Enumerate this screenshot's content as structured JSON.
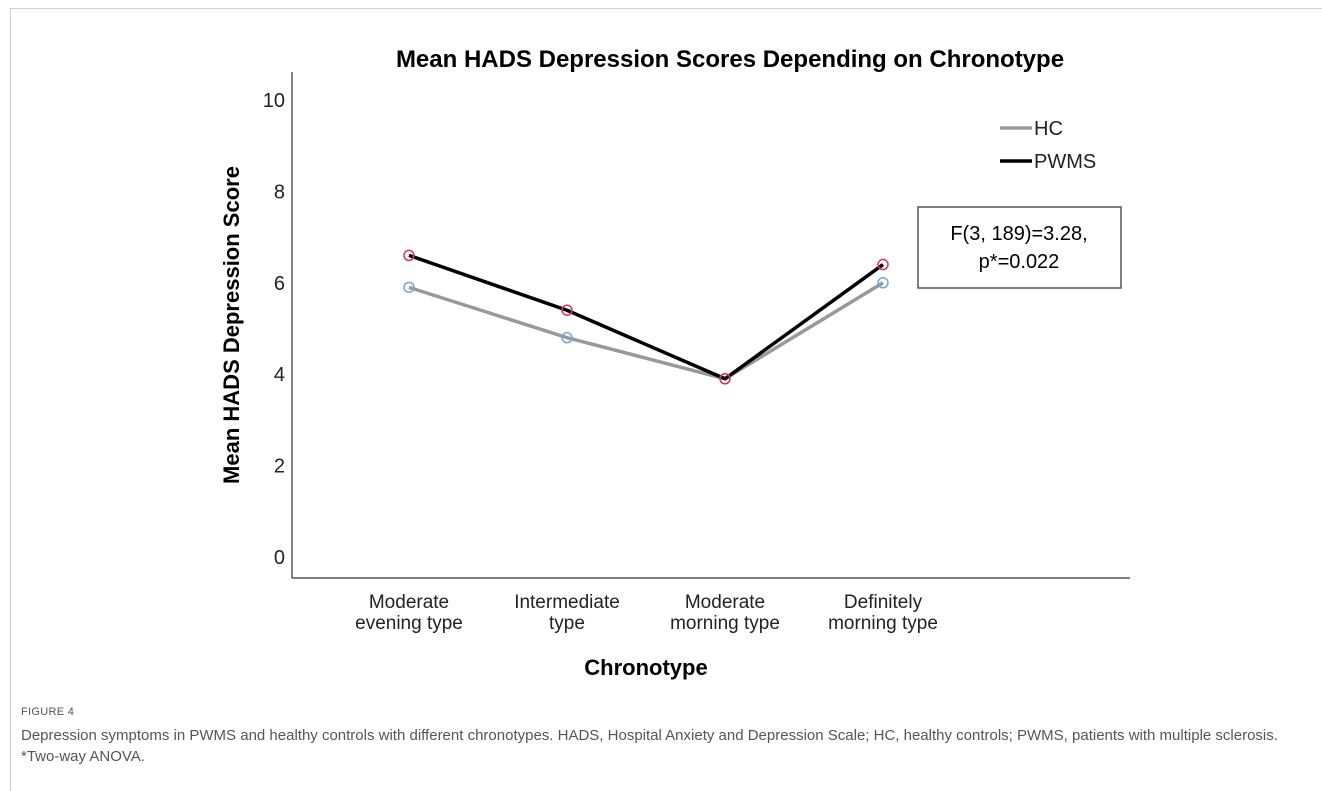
{
  "figure": {
    "label": "FIGURE 4",
    "caption": "Depression symptoms in PWMS and healthy controls with different chronotypes. HADS, Hospital Anxiety and Depression Scale; HC, healthy controls; PWMS, patients with multiple sclerosis. *Two-way ANOVA."
  },
  "chart_data": {
    "type": "line",
    "title": "Mean HADS Depression Scores Depending on Chronotype",
    "xlabel": "Chronotype",
    "ylabel": "Mean HADS Depression Score",
    "categories": [
      [
        "Moderate",
        "evening type"
      ],
      [
        "Intermediate",
        "type"
      ],
      [
        "Moderate",
        "morning type"
      ],
      [
        "Definitely",
        "morning type"
      ]
    ],
    "ylim": [
      0,
      10
    ],
    "yticks": [
      0,
      2,
      4,
      6,
      8,
      10
    ],
    "series": [
      {
        "name": "HC",
        "values": [
          5.9,
          4.8,
          3.9,
          6.0
        ],
        "line_color": "#999999",
        "marker_color": "#6fa8dc"
      },
      {
        "name": "PWMS",
        "values": [
          6.6,
          5.4,
          3.9,
          6.4
        ],
        "line_color": "#000000",
        "marker_color": "#e0325a"
      }
    ],
    "legend_position": "top-right",
    "annotation": [
      "F(3, 189)=3.28,",
      "p*=0.022"
    ],
    "grid": false
  }
}
